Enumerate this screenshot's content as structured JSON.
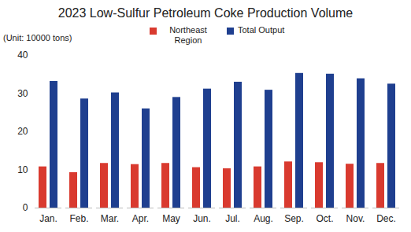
{
  "chart_data": {
    "type": "bar",
    "title": "2023 Low-Sulfur Petroleum Coke Production Volume",
    "y_label": "(Unit: 10000 tons)",
    "categories": [
      "Jan.",
      "Feb.",
      "Mar.",
      "Apr.",
      "May",
      "Jun.",
      "Jul.",
      "Aug.",
      "Sep.",
      "Oct.",
      "Nov.",
      "Dec."
    ],
    "series": [
      {
        "name": "Northeast Region",
        "color": "#d93a2f",
        "values": [
          10.8,
          9.3,
          11.7,
          11.4,
          11.7,
          10.6,
          10.3,
          10.8,
          12.1,
          11.9,
          11.5,
          11.7
        ]
      },
      {
        "name": "Total Output",
        "color": "#1f3f8f",
        "values": [
          33.2,
          28.6,
          30.2,
          26.0,
          29.0,
          31.2,
          33.0,
          30.9,
          35.3,
          35.1,
          33.9,
          32.5
        ]
      }
    ],
    "ylim": [
      0,
      40
    ],
    "yticks": [
      0,
      10,
      20,
      30,
      40
    ],
    "grid": false,
    "legend": "top"
  }
}
